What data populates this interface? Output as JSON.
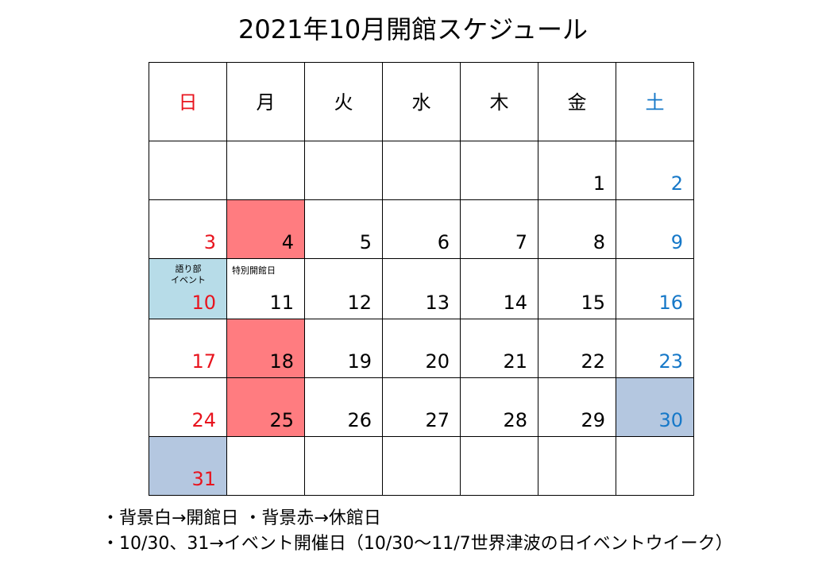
{
  "title": "2021年10月開館スケジュール",
  "weekdays": [
    "日",
    "月",
    "火",
    "水",
    "木",
    "金",
    "土"
  ],
  "weeks": [
    [
      {
        "day": "",
        "bg": "open"
      },
      {
        "day": "",
        "bg": "open"
      },
      {
        "day": "",
        "bg": "open"
      },
      {
        "day": "",
        "bg": "open"
      },
      {
        "day": "",
        "bg": "open"
      },
      {
        "day": "1",
        "bg": "open"
      },
      {
        "day": "2",
        "bg": "open"
      }
    ],
    [
      {
        "day": "3",
        "bg": "open"
      },
      {
        "day": "4",
        "bg": "closed"
      },
      {
        "day": "5",
        "bg": "open"
      },
      {
        "day": "6",
        "bg": "open"
      },
      {
        "day": "7",
        "bg": "open"
      },
      {
        "day": "8",
        "bg": "open"
      },
      {
        "day": "9",
        "bg": "open"
      }
    ],
    [
      {
        "day": "10",
        "bg": "event",
        "note_line1": "語り部",
        "note_line2": "イベント"
      },
      {
        "day": "11",
        "bg": "open",
        "note_line1": "特別開館日"
      },
      {
        "day": "12",
        "bg": "open"
      },
      {
        "day": "13",
        "bg": "open"
      },
      {
        "day": "14",
        "bg": "open"
      },
      {
        "day": "15",
        "bg": "open"
      },
      {
        "day": "16",
        "bg": "open"
      }
    ],
    [
      {
        "day": "17",
        "bg": "open"
      },
      {
        "day": "18",
        "bg": "closed"
      },
      {
        "day": "19",
        "bg": "open"
      },
      {
        "day": "20",
        "bg": "open"
      },
      {
        "day": "21",
        "bg": "open"
      },
      {
        "day": "22",
        "bg": "open"
      },
      {
        "day": "23",
        "bg": "open"
      }
    ],
    [
      {
        "day": "24",
        "bg": "open"
      },
      {
        "day": "25",
        "bg": "closed"
      },
      {
        "day": "26",
        "bg": "open"
      },
      {
        "day": "27",
        "bg": "open"
      },
      {
        "day": "28",
        "bg": "open"
      },
      {
        "day": "29",
        "bg": "open"
      },
      {
        "day": "30",
        "bg": "tsunami"
      }
    ],
    [
      {
        "day": "31",
        "bg": "tsunami"
      },
      {
        "day": "",
        "bg": "open"
      },
      {
        "day": "",
        "bg": "open"
      },
      {
        "day": "",
        "bg": "open"
      },
      {
        "day": "",
        "bg": "open"
      },
      {
        "day": "",
        "bg": "open"
      },
      {
        "day": "",
        "bg": "open"
      }
    ]
  ],
  "legend": {
    "line1": "・背景白→開館日 ・背景赤→休館日",
    "line2": "・10/30、31→イベント開催日（10/30～11/7世界津波の日イベントウイーク）"
  },
  "colors": {
    "sunday_text": "#e8141e",
    "saturday_text": "#1678c8",
    "closed_bg": "#ff7c80",
    "event_bg": "#b7dce8",
    "tsunami_week_bg": "#b4c7e0"
  }
}
